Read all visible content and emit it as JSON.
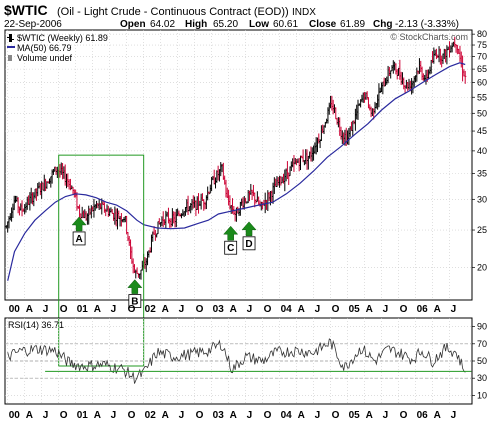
{
  "header": {
    "symbol": "$WTIC",
    "description": "(Oil - Light Crude - Continuous Contract (EOD))",
    "exchange": "INDX",
    "date": "22-Sep-2006",
    "open_label": "Open",
    "open": "64.02",
    "high_label": "High",
    "high": "65.20",
    "low_label": "Low",
    "low": "60.61",
    "close_label": "Close",
    "close": "61.89",
    "chg_label": "Chg",
    "chg": "-2.13 (-3.33%)",
    "watermark": "© StockCharts.com"
  },
  "colors": {
    "up_bar": "#000000",
    "down_bar": "#cc0033",
    "ma_line": "#2a2a9e",
    "box": "#229922",
    "arrow": "#1a8a1a",
    "support_line": "#229922",
    "rsi_line": "#333333",
    "grid": "#cccccc"
  },
  "chart_data": [
    {
      "type": "line",
      "legend": [
        {
          "icon": "price-bar-icon",
          "text": "$WTIC (Weekly) 61.89"
        },
        {
          "icon": "line-swatch-icon",
          "text": "MA(50) 66.79"
        },
        {
          "icon": "volume-bar-icon",
          "text": "Volume undef"
        }
      ],
      "y_scale": "log",
      "ylim": [
        16.5,
        82
      ],
      "y_ticks": [
        80,
        75,
        70,
        65,
        60,
        55,
        50,
        45,
        40,
        35,
        30,
        25,
        20
      ],
      "x_ticks": [
        "00",
        "A",
        "J",
        "O",
        "01",
        "A",
        "J",
        "O",
        "02",
        "A",
        "J",
        "O",
        "03",
        "A",
        "J",
        "O",
        "04",
        "A",
        "J",
        "O",
        "05",
        "A",
        "J",
        "O",
        "06",
        "A",
        "J"
      ],
      "price_path": [
        [
          1999.98,
          25.5
        ],
        [
          2000.1,
          30
        ],
        [
          2000.2,
          28
        ],
        [
          2000.4,
          31
        ],
        [
          2000.55,
          33
        ],
        [
          2000.72,
          36
        ],
        [
          2000.86,
          34
        ],
        [
          2000.95,
          32
        ],
        [
          2001.05,
          28
        ],
        [
          2001.15,
          27
        ],
        [
          2001.3,
          29
        ],
        [
          2001.4,
          28.5
        ],
        [
          2001.55,
          27.5
        ],
        [
          2001.65,
          27
        ],
        [
          2001.72,
          27
        ],
        [
          2001.8,
          22
        ],
        [
          2001.87,
          19.3
        ],
        [
          2001.95,
          19.5
        ],
        [
          2002.05,
          21
        ],
        [
          2002.15,
          24.5
        ],
        [
          2002.3,
          27
        ],
        [
          2002.45,
          26.5
        ],
        [
          2002.6,
          28.5
        ],
        [
          2002.75,
          29
        ],
        [
          2002.9,
          30
        ],
        [
          2003.0,
          33
        ],
        [
          2003.15,
          36
        ],
        [
          2003.23,
          30
        ],
        [
          2003.35,
          27.5
        ],
        [
          2003.45,
          29.5
        ],
        [
          2003.6,
          31
        ],
        [
          2003.72,
          28.5
        ],
        [
          2003.8,
          30
        ],
        [
          2003.95,
          32.5
        ],
        [
          2004.1,
          35
        ],
        [
          2004.3,
          38
        ],
        [
          2004.45,
          39
        ],
        [
          2004.6,
          44
        ],
        [
          2004.77,
          53
        ],
        [
          2004.9,
          45
        ],
        [
          2005.0,
          43
        ],
        [
          2005.15,
          51
        ],
        [
          2005.25,
          56
        ],
        [
          2005.35,
          50
        ],
        [
          2005.5,
          58
        ],
        [
          2005.65,
          66
        ],
        [
          2005.75,
          64
        ],
        [
          2005.85,
          59
        ],
        [
          2005.95,
          60
        ],
        [
          2006.05,
          66
        ],
        [
          2006.15,
          61
        ],
        [
          2006.3,
          72
        ],
        [
          2006.4,
          70
        ],
        [
          2006.52,
          75
        ],
        [
          2006.6,
          77
        ],
        [
          2006.67,
          67
        ],
        [
          2006.73,
          62
        ]
      ],
      "ma50_path": [
        [
          2000.0,
          18.5
        ],
        [
          2000.1,
          22
        ],
        [
          2000.25,
          24.5
        ],
        [
          2000.4,
          26.5
        ],
        [
          2000.55,
          28
        ],
        [
          2000.7,
          29.5
        ],
        [
          2000.85,
          30.5
        ],
        [
          2001.0,
          31
        ],
        [
          2001.15,
          30.8
        ],
        [
          2001.3,
          30.3
        ],
        [
          2001.45,
          29.5
        ],
        [
          2001.6,
          29
        ],
        [
          2001.75,
          28
        ],
        [
          2001.9,
          26.5
        ],
        [
          2002.0,
          25.8
        ],
        [
          2002.2,
          25.3
        ],
        [
          2002.4,
          25.2
        ],
        [
          2002.6,
          25.3
        ],
        [
          2002.8,
          26
        ],
        [
          2002.95,
          26.5
        ],
        [
          2003.1,
          27.5
        ],
        [
          2003.3,
          28
        ],
        [
          2003.5,
          28.5
        ],
        [
          2003.7,
          29
        ],
        [
          2003.9,
          29.5
        ],
        [
          2004.1,
          31
        ],
        [
          2004.3,
          33
        ],
        [
          2004.5,
          35.5
        ],
        [
          2004.7,
          38.5
        ],
        [
          2004.9,
          41
        ],
        [
          2005.1,
          44
        ],
        [
          2005.3,
          47
        ],
        [
          2005.5,
          51
        ],
        [
          2005.7,
          54.5
        ],
        [
          2005.9,
          57
        ],
        [
          2006.1,
          60
        ],
        [
          2006.3,
          63
        ],
        [
          2006.5,
          66
        ],
        [
          2006.65,
          67.5
        ],
        [
          2006.73,
          66.79
        ]
      ],
      "annotations": [
        {
          "label": "A",
          "x": 2001.05,
          "y": 28,
          "arrow": "up"
        },
        {
          "label": "B",
          "x": 2001.87,
          "y": 19.3,
          "arrow": "up"
        },
        {
          "label": "C",
          "x": 2003.28,
          "y": 26.5,
          "arrow": "up"
        },
        {
          "label": "D",
          "x": 2003.55,
          "y": 27.2,
          "arrow": "up"
        }
      ],
      "highlight_box": {
        "x0": 2000.75,
        "x1": 2002.0,
        "y0": 16.5,
        "y1": 39
      }
    },
    {
      "type": "line",
      "title": "RSI(14) 36.71",
      "ylim": [
        0,
        100
      ],
      "y_ticks": [
        90,
        70,
        50,
        30,
        10
      ],
      "reference_lines": [
        70,
        50,
        30
      ],
      "support_line": {
        "x0": 2000.55,
        "x1": 2006.82,
        "y": 38
      },
      "rsi_path": [
        [
          2000.0,
          55
        ],
        [
          2000.2,
          62
        ],
        [
          2000.45,
          64
        ],
        [
          2000.7,
          62
        ],
        [
          2000.9,
          48
        ],
        [
          2001.1,
          44
        ],
        [
          2001.4,
          46
        ],
        [
          2001.7,
          40
        ],
        [
          2001.87,
          30
        ],
        [
          2002.0,
          36
        ],
        [
          2002.2,
          60
        ],
        [
          2002.45,
          55
        ],
        [
          2002.7,
          58
        ],
        [
          2002.95,
          62
        ],
        [
          2003.15,
          70
        ],
        [
          2003.3,
          40
        ],
        [
          2003.5,
          55
        ],
        [
          2003.75,
          50
        ],
        [
          2003.95,
          60
        ],
        [
          2004.25,
          62
        ],
        [
          2004.5,
          60
        ],
        [
          2004.75,
          72
        ],
        [
          2004.95,
          42
        ],
        [
          2005.2,
          65
        ],
        [
          2005.4,
          50
        ],
        [
          2005.6,
          64
        ],
        [
          2005.8,
          58
        ],
        [
          2005.95,
          52
        ],
        [
          2006.1,
          62
        ],
        [
          2006.25,
          50
        ],
        [
          2006.45,
          65
        ],
        [
          2006.6,
          60
        ],
        [
          2006.73,
          36.71
        ]
      ]
    }
  ]
}
